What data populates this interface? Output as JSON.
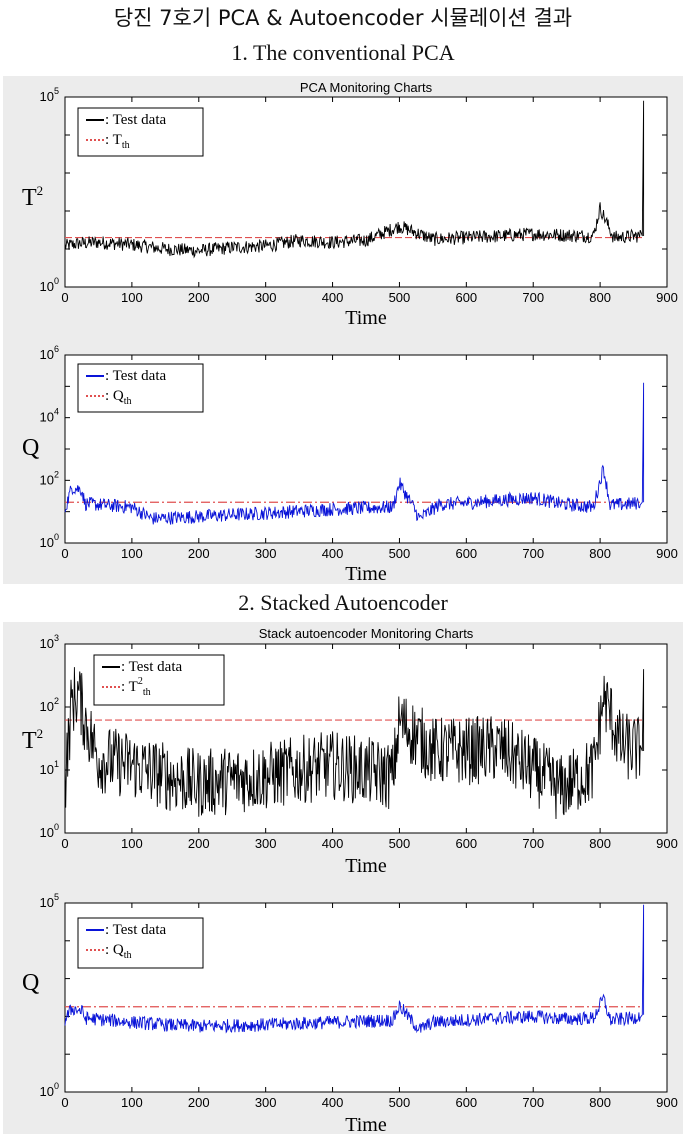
{
  "page": {
    "main_title": "당진 7호기 PCA & Autoencoder 시뮬레이션 결과",
    "section1_title": "1. The conventional PCA",
    "section2_title": "2. Stacked  Autoencoder"
  },
  "colors": {
    "black": "#000000",
    "blue": "#0a14d8",
    "threshold": "#e05050"
  },
  "chart_data": [
    {
      "type": "line",
      "title": "PCA Monitoring Charts",
      "ylabel": "T",
      "ylabel_sup": "2",
      "xlabel": "Time",
      "xlim": [
        0,
        900
      ],
      "xticks": [
        0,
        100,
        200,
        300,
        400,
        500,
        600,
        700,
        800,
        900
      ],
      "ylim": [
        1,
        100000
      ],
      "yscale": "log",
      "yticks": [
        {
          "base": "10",
          "exp": "0"
        },
        {
          "base": "10",
          "exp": "5"
        }
      ],
      "legend": {
        "position": "top-left",
        "data_label": ": Test data",
        "th_label": ": T",
        "th_sub": "th"
      },
      "series_color": "#000000",
      "threshold": 20,
      "series_points": [
        [
          0,
          12
        ],
        [
          20,
          14
        ],
        [
          50,
          15
        ],
        [
          100,
          13
        ],
        [
          150,
          10
        ],
        [
          200,
          9
        ],
        [
          250,
          11
        ],
        [
          300,
          12
        ],
        [
          350,
          17
        ],
        [
          400,
          15
        ],
        [
          450,
          17
        ],
        [
          500,
          40
        ],
        [
          550,
          18
        ],
        [
          600,
          20
        ],
        [
          650,
          22
        ],
        [
          700,
          25
        ],
        [
          750,
          23
        ],
        [
          790,
          22
        ],
        [
          800,
          120
        ],
        [
          820,
          20
        ],
        [
          850,
          22
        ],
        [
          860,
          22
        ],
        [
          865,
          80000
        ]
      ]
    },
    {
      "type": "line",
      "title": "",
      "ylabel": "Q",
      "ylabel_sup": "",
      "xlabel": "Time",
      "xlim": [
        0,
        900
      ],
      "xticks": [
        0,
        100,
        200,
        300,
        400,
        500,
        600,
        700,
        800,
        900
      ],
      "ylim": [
        1,
        1000000
      ],
      "yscale": "log",
      "yticks": [
        {
          "base": "10",
          "exp": "0"
        },
        {
          "base": "10",
          "exp": "2"
        },
        {
          "base": "10",
          "exp": "4"
        },
        {
          "base": "10",
          "exp": "6"
        }
      ],
      "legend": {
        "position": "top-left",
        "data_label": ": Test data",
        "th_label": ": Q",
        "th_sub": "th"
      },
      "series_color": "#0a14d8",
      "threshold": 20,
      "series_points": [
        [
          0,
          12
        ],
        [
          10,
          60
        ],
        [
          25,
          50
        ],
        [
          30,
          18
        ],
        [
          100,
          14
        ],
        [
          130,
          6
        ],
        [
          200,
          7
        ],
        [
          300,
          9
        ],
        [
          400,
          12
        ],
        [
          490,
          14
        ],
        [
          500,
          80
        ],
        [
          520,
          15
        ],
        [
          530,
          6
        ],
        [
          560,
          17
        ],
        [
          600,
          19
        ],
        [
          650,
          23
        ],
        [
          700,
          28
        ],
        [
          740,
          18
        ],
        [
          790,
          14
        ],
        [
          805,
          250
        ],
        [
          815,
          16
        ],
        [
          850,
          18
        ],
        [
          860,
          20
        ],
        [
          865,
          130000
        ]
      ]
    },
    {
      "type": "line",
      "title": "Stack autoencoder Monitoring Charts",
      "ylabel": "T",
      "ylabel_sup": "2",
      "xlabel": "Time",
      "xlim": [
        0,
        900
      ],
      "xticks": [
        0,
        100,
        200,
        300,
        400,
        500,
        600,
        700,
        800,
        900
      ],
      "ylim": [
        1,
        1000
      ],
      "yscale": "log",
      "yticks": [
        {
          "base": "10",
          "exp": "0"
        },
        {
          "base": "10",
          "exp": "1"
        },
        {
          "base": "10",
          "exp": "2"
        },
        {
          "base": "10",
          "exp": "3"
        }
      ],
      "legend": {
        "position": "top-left",
        "data_label": ": Test data",
        "th_label": ": T",
        "th_sup": "2",
        "th_sub": "th"
      },
      "series_color": "#000000",
      "threshold": 62,
      "series_points": [
        [
          0,
          6
        ],
        [
          10,
          120
        ],
        [
          20,
          170
        ],
        [
          30,
          60
        ],
        [
          50,
          15
        ],
        [
          100,
          12
        ],
        [
          150,
          8
        ],
        [
          200,
          6
        ],
        [
          250,
          7
        ],
        [
          300,
          8
        ],
        [
          350,
          10
        ],
        [
          400,
          12
        ],
        [
          490,
          8
        ],
        [
          500,
          60
        ],
        [
          550,
          20
        ],
        [
          600,
          20
        ],
        [
          650,
          22
        ],
        [
          700,
          10
        ],
        [
          740,
          5
        ],
        [
          790,
          10
        ],
        [
          805,
          140
        ],
        [
          815,
          80
        ],
        [
          830,
          25
        ],
        [
          860,
          20
        ],
        [
          865,
          400
        ]
      ]
    },
    {
      "type": "line",
      "title": "",
      "ylabel": "Q",
      "ylabel_sup": "",
      "xlabel": "Time",
      "xlim": [
        0,
        900
      ],
      "xticks": [
        0,
        100,
        200,
        300,
        400,
        500,
        600,
        700,
        800,
        900
      ],
      "ylim": [
        1,
        100000
      ],
      "yscale": "log",
      "yticks": [
        {
          "base": "10",
          "exp": "0"
        },
        {
          "base": "10",
          "exp": "5"
        }
      ],
      "legend": {
        "position": "top-left",
        "data_label": ": Test data",
        "th_label": ": Q",
        "th_sub": "th"
      },
      "series_color": "#0a14d8",
      "threshold": 180,
      "series_points": [
        [
          0,
          80
        ],
        [
          10,
          160
        ],
        [
          25,
          140
        ],
        [
          30,
          90
        ],
        [
          100,
          70
        ],
        [
          150,
          60
        ],
        [
          200,
          55
        ],
        [
          300,
          60
        ],
        [
          400,
          70
        ],
        [
          490,
          80
        ],
        [
          500,
          190
        ],
        [
          520,
          70
        ],
        [
          530,
          45
        ],
        [
          550,
          70
        ],
        [
          600,
          80
        ],
        [
          650,
          90
        ],
        [
          700,
          100
        ],
        [
          750,
          85
        ],
        [
          790,
          90
        ],
        [
          805,
          300
        ],
        [
          815,
          80
        ],
        [
          850,
          90
        ],
        [
          860,
          110
        ],
        [
          865,
          90000
        ]
      ]
    }
  ]
}
